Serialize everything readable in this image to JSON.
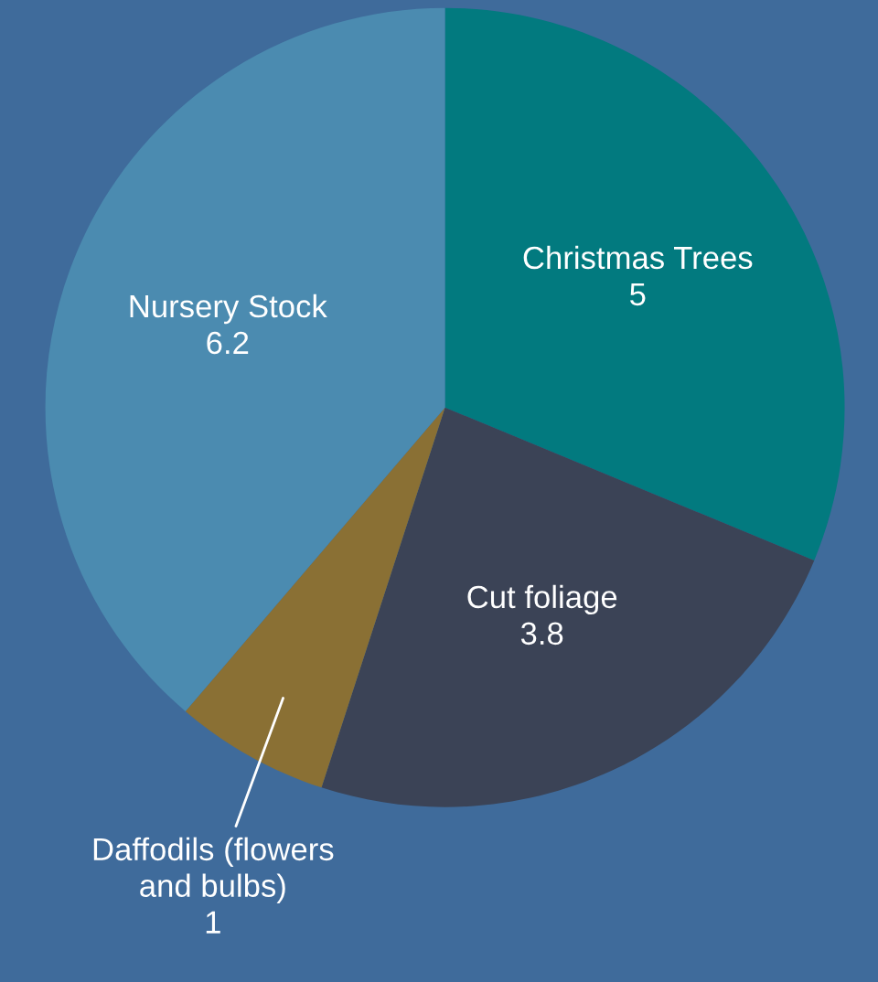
{
  "chart_data": {
    "type": "pie",
    "categories": [
      "Christmas Trees",
      "Cut foliage",
      "Daffodils (flowers\nand bulbs)",
      "Nursery Stock"
    ],
    "values": [
      5,
      3.8,
      1,
      6.2
    ],
    "colors": [
      "#027a7f",
      "#3b4356",
      "#8a7034",
      "#4b8bb0"
    ],
    "data_labels": true,
    "legend": false
  }
}
